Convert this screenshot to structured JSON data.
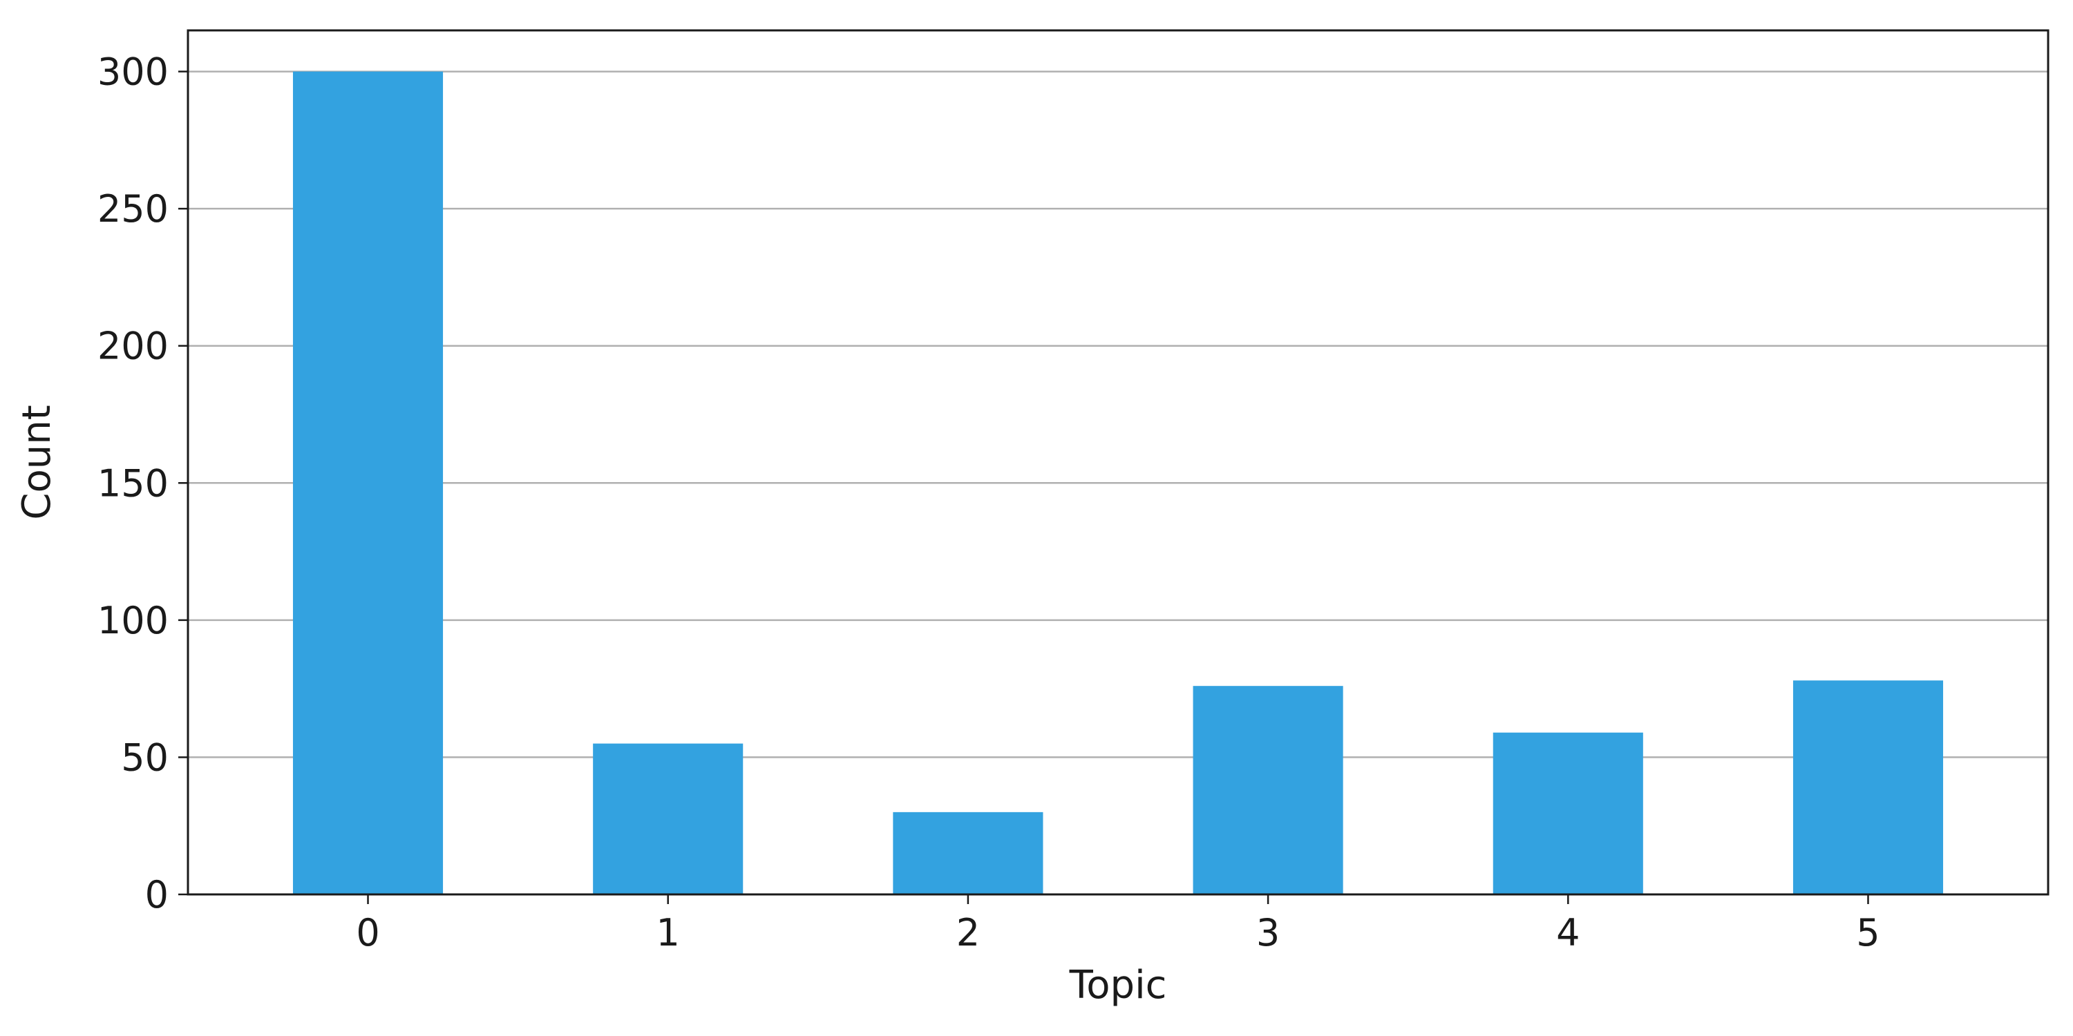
{
  "chart_data": {
    "type": "bar",
    "categories": [
      "0",
      "1",
      "2",
      "3",
      "4",
      "5"
    ],
    "values": [
      300,
      55,
      30,
      76,
      59,
      78
    ],
    "xlabel": "Topic",
    "ylabel": "Count",
    "ylim": [
      0,
      315
    ],
    "yticks": [
      0,
      50,
      100,
      150,
      200,
      250,
      300
    ],
    "grid": "horizontal",
    "bar_color": "#33a2e0"
  }
}
